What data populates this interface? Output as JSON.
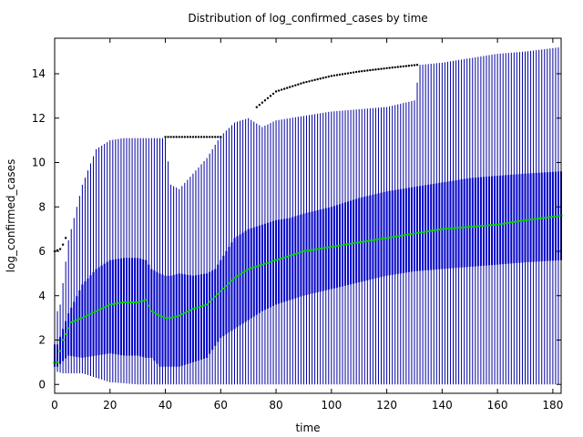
{
  "chart_data": {
    "type": "boxplot",
    "title": "Distribution of log_confirmed_cases by time",
    "xlabel": "time",
    "ylabel": "log_confirmed_cases",
    "xlim": [
      0,
      183
    ],
    "ylim": [
      -0.4,
      15.6
    ],
    "x_ticks": [
      0,
      20,
      40,
      60,
      80,
      100,
      120,
      140,
      160,
      180
    ],
    "y_ticks": [
      0,
      2,
      4,
      6,
      8,
      10,
      12,
      14
    ],
    "grid": false,
    "legend": "none",
    "colors": {
      "whisker": "#0000a0",
      "box": "#0000c8",
      "median": "#00cc00",
      "outlier": "#000000"
    },
    "series": [
      {
        "stat": "whisker_high",
        "x": [
          0,
          2,
          5,
          10,
          15,
          20,
          25,
          30,
          33,
          35,
          38,
          40,
          42,
          45,
          50,
          55,
          60,
          65,
          70,
          75,
          80,
          90,
          100,
          110,
          120,
          130,
          132,
          140,
          150,
          160,
          170,
          183
        ],
        "values": [
          3.0,
          3.6,
          6.5,
          9.0,
          10.6,
          11.0,
          11.1,
          11.1,
          11.1,
          11.1,
          11.1,
          11.1,
          9.0,
          8.8,
          9.5,
          10.2,
          11.2,
          11.8,
          12.0,
          11.6,
          11.9,
          12.1,
          12.3,
          12.4,
          12.5,
          12.8,
          14.4,
          14.5,
          14.7,
          14.9,
          15.0,
          15.2
        ]
      },
      {
        "stat": "q3",
        "x": [
          1,
          5,
          10,
          15,
          20,
          25,
          30,
          33,
          35,
          38,
          40,
          42,
          45,
          50,
          55,
          58,
          60,
          65,
          70,
          75,
          80,
          85,
          90,
          100,
          110,
          120,
          130,
          140,
          150,
          160,
          170,
          183
        ],
        "values": [
          1.8,
          3.2,
          4.5,
          5.2,
          5.6,
          5.7,
          5.7,
          5.6,
          5.2,
          5.0,
          4.9,
          4.9,
          5.0,
          4.9,
          5.0,
          5.2,
          5.6,
          6.6,
          7.0,
          7.2,
          7.4,
          7.5,
          7.7,
          8.0,
          8.4,
          8.7,
          8.9,
          9.1,
          9.3,
          9.4,
          9.5,
          9.6
        ]
      },
      {
        "stat": "median",
        "x": [
          1,
          3,
          6,
          10,
          15,
          20,
          25,
          30,
          33,
          35,
          38,
          40,
          42,
          45,
          50,
          55,
          60,
          65,
          70,
          75,
          80,
          85,
          90,
          100,
          110,
          120,
          130,
          140,
          150,
          160,
          170,
          183
        ],
        "values": [
          1.0,
          2.0,
          2.8,
          3.0,
          3.3,
          3.6,
          3.7,
          3.7,
          3.8,
          3.3,
          3.1,
          3.0,
          3.0,
          3.1,
          3.4,
          3.6,
          4.2,
          4.8,
          5.2,
          5.4,
          5.6,
          5.8,
          6.0,
          6.2,
          6.4,
          6.6,
          6.8,
          7.0,
          7.1,
          7.2,
          7.4,
          7.6
        ]
      },
      {
        "stat": "q1",
        "x": [
          1,
          5,
          10,
          15,
          20,
          25,
          30,
          33,
          35,
          38,
          40,
          42,
          45,
          50,
          55,
          60,
          65,
          70,
          75,
          80,
          85,
          90,
          100,
          110,
          120,
          130,
          140,
          150,
          160,
          170,
          183
        ],
        "values": [
          0.8,
          1.3,
          1.2,
          1.3,
          1.4,
          1.3,
          1.3,
          1.2,
          1.2,
          0.8,
          0.8,
          0.8,
          0.8,
          1.0,
          1.2,
          2.1,
          2.5,
          2.9,
          3.3,
          3.6,
          3.8,
          4.0,
          4.3,
          4.6,
          4.9,
          5.1,
          5.2,
          5.3,
          5.4,
          5.5,
          5.6
        ]
      },
      {
        "stat": "whisker_low",
        "x": [
          0,
          3,
          10,
          20,
          30,
          33,
          35,
          40,
          45,
          50,
          55,
          60,
          65,
          70,
          80,
          90,
          100,
          110,
          120,
          130,
          140,
          160,
          183
        ],
        "values": [
          0.6,
          0.5,
          0.5,
          0.1,
          0.0,
          0.0,
          0.0,
          0.0,
          0.0,
          0.0,
          0.0,
          0.0,
          0.0,
          0.0,
          0.0,
          0.0,
          0.0,
          0.0,
          0.0,
          0.0,
          0.0,
          0.0,
          0.0
        ]
      },
      {
        "stat": "outlier_top",
        "x": [
          0,
          1,
          2,
          3,
          4,
          40,
          60,
          75,
          80,
          90,
          100,
          110,
          120,
          131
        ],
        "values": [
          6.0,
          6.05,
          6.1,
          6.3,
          6.6,
          11.15,
          11.15,
          12.7,
          13.2,
          13.6,
          13.9,
          14.1,
          14.25,
          14.4
        ]
      }
    ]
  }
}
